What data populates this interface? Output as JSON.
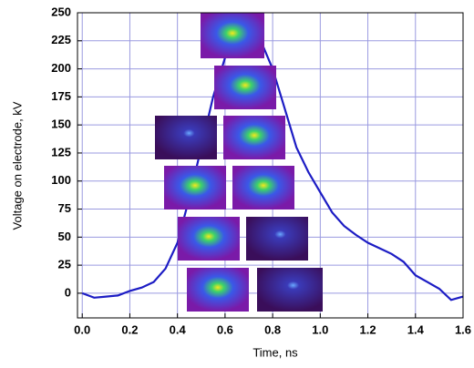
{
  "chart_data": {
    "type": "line",
    "x_label": "Time, ns",
    "y_label": "Voltage on electrode, kV",
    "x": [
      0,
      0.05,
      0.1,
      0.15,
      0.2,
      0.25,
      0.3,
      0.35,
      0.4,
      0.45,
      0.5,
      0.55,
      0.6,
      0.65,
      0.7,
      0.75,
      0.8,
      0.85,
      0.9,
      0.95,
      1.0,
      1.05,
      1.1,
      1.15,
      1.2,
      1.25,
      1.3,
      1.35,
      1.4,
      1.45,
      1.5,
      1.55,
      1.6
    ],
    "series": [
      {
        "name": "Voltage",
        "color": "#1c1cc4",
        "values": [
          0,
          -4,
          -3,
          -2,
          2,
          5,
          10,
          22,
          45,
          85,
          130,
          175,
          210,
          235,
          238,
          225,
          200,
          165,
          130,
          108,
          90,
          72,
          60,
          52,
          45,
          40,
          35,
          28,
          16,
          10,
          4,
          -6,
          -3
        ]
      }
    ],
    "xlim": [
      -0.02,
      1.6
    ],
    "ylim": [
      -22,
      250
    ],
    "xticks": [
      {
        "value": 0,
        "label": "0.0"
      },
      0.2,
      0.4,
      0.6,
      0.8,
      {
        "value": 1,
        "label": "1.0"
      },
      1.2,
      1.4,
      1.6
    ],
    "yticks": [
      0,
      25,
      50,
      75,
      100,
      125,
      150,
      175,
      200,
      225,
      250
    ],
    "grid": true,
    "grid_color": "#9a9ae0"
  }
}
